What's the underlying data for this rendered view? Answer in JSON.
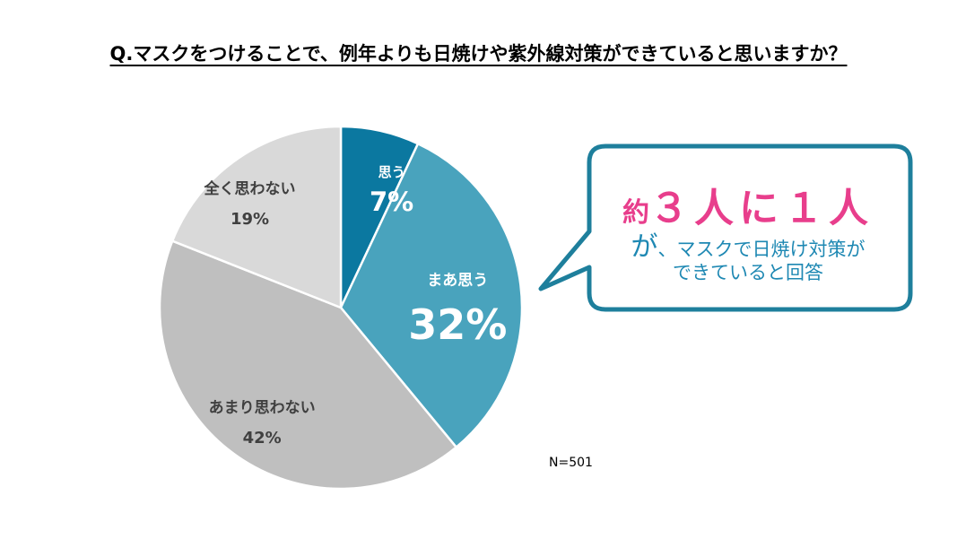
{
  "title": "Q.マスクをつけることで、例年よりも日焼けや紫外線対策ができていると思いますか？",
  "chart_data": {
    "type": "pie",
    "slices": [
      {
        "label": "思う",
        "value": 7,
        "value_label": "7%",
        "color": "#0b78a0",
        "text_color": "#ffffff"
      },
      {
        "label": "まあ思う",
        "value": 32,
        "value_label": "32%",
        "color": "#49a3bd",
        "text_color": "#ffffff"
      },
      {
        "label": "あまり思わない",
        "value": 42,
        "value_label": "42%",
        "color": "#bfbfbf",
        "text_color": "#404040"
      },
      {
        "label": "全く思わない",
        "value": 19,
        "value_label": "19%",
        "color": "#d9d9d9",
        "text_color": "#404040"
      }
    ],
    "start": "12 o'clock",
    "direction": "clockwise"
  },
  "callout": {
    "highlight_yaku": "約",
    "highlight_number": "３人に１人",
    "line2_ga": "が",
    "line2_rest": "、マスクで日焼け対策が",
    "line3": "できていると回答",
    "border_color": "#1e7f9c",
    "pink": "#e83e8c",
    "blue": "#1e88b3"
  },
  "n_label": "N=501"
}
